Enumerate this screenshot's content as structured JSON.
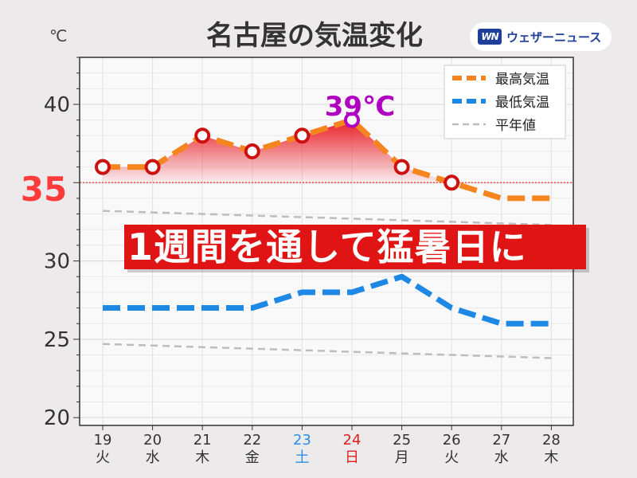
{
  "title": "名古屋の気温変化",
  "brand": {
    "mark": "WN",
    "name": "ウェザーニュース"
  },
  "banner": "1週間を通して猛暑日に",
  "peak_label": "39℃",
  "threshold_label": "35",
  "colors": {
    "max": "#f5861f",
    "min": "#1e88e5",
    "normal": "#bdbdbd",
    "fill": "#e8121a",
    "marker": "#cc1111",
    "peak": "#b000c0",
    "saturday": "#2b8ee8",
    "sunday": "#e02020",
    "banner": "#e01414"
  },
  "chart_data": {
    "type": "line",
    "title": "名古屋の気温変化",
    "ylabel": "℃",
    "ylim": [
      19.5,
      43
    ],
    "yticks": [
      20,
      25,
      30,
      35,
      40
    ],
    "grid": true,
    "legend_position": "top-right",
    "categories": [
      {
        "date": "19",
        "weekday": "火"
      },
      {
        "date": "20",
        "weekday": "水"
      },
      {
        "date": "21",
        "weekday": "木"
      },
      {
        "date": "22",
        "weekday": "金"
      },
      {
        "date": "23",
        "weekday": "土"
      },
      {
        "date": "24",
        "weekday": "日"
      },
      {
        "date": "25",
        "weekday": "月"
      },
      {
        "date": "26",
        "weekday": "火"
      },
      {
        "date": "27",
        "weekday": "水"
      },
      {
        "date": "28",
        "weekday": "木"
      }
    ],
    "series": [
      {
        "name": "最高気温",
        "key": "max",
        "values": [
          36,
          36,
          38,
          37,
          38,
          39,
          36,
          35,
          34,
          34
        ]
      },
      {
        "name": "最低気温",
        "key": "min",
        "values": [
          27,
          27,
          27,
          27,
          28,
          28,
          29,
          27,
          26,
          26
        ]
      },
      {
        "name": "平年値",
        "key": "normal_max",
        "values": [
          33.2,
          33.1,
          33.0,
          32.9,
          32.8,
          32.7,
          32.6,
          32.5,
          32.4,
          32.3
        ]
      },
      {
        "name": "平年値",
        "key": "normal_min",
        "values": [
          24.7,
          24.6,
          24.5,
          24.4,
          24.3,
          24.2,
          24.1,
          24.0,
          23.9,
          23.8
        ]
      }
    ],
    "threshold": 35,
    "peak": {
      "index": 5,
      "value": 39
    }
  }
}
